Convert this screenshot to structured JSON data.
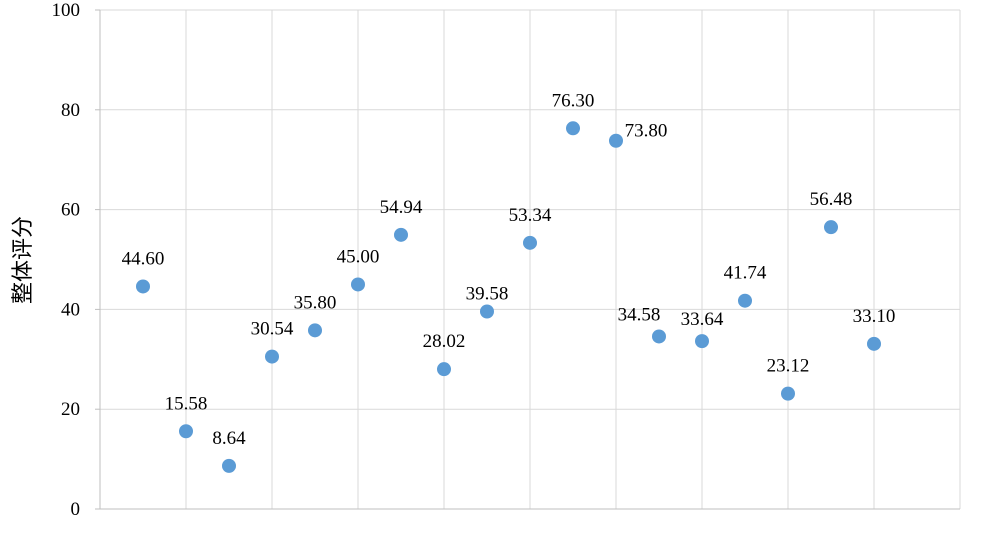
{
  "chart_data": {
    "type": "scatter",
    "title": "",
    "xlabel": "",
    "ylabel": "整体评分",
    "ylim": [
      0,
      100
    ],
    "yticks": [
      0,
      20,
      40,
      60,
      80,
      100
    ],
    "x": [
      1,
      2,
      3,
      4,
      5,
      6,
      7,
      8,
      9,
      10,
      11,
      12,
      13,
      14,
      15,
      16,
      17,
      18
    ],
    "y": [
      44.6,
      15.58,
      8.64,
      30.54,
      35.8,
      45.0,
      54.94,
      28.02,
      39.58,
      53.34,
      76.3,
      73.8,
      34.58,
      33.64,
      41.74,
      23.12,
      56.48,
      33.1
    ],
    "labels": [
      "44.60",
      "15.58",
      "8.64",
      "30.54",
      "35.80",
      "45.00",
      "54.94",
      "28.02",
      "39.58",
      "53.34",
      "76.30",
      "73.80",
      "34.58",
      "33.64",
      "41.74",
      "23.12",
      "56.48",
      "33.10"
    ],
    "grid": true,
    "legend": "none",
    "colors": {
      "point": "#5b9bd5",
      "grid": "#d9d9d9",
      "axis": "#bfbfbf"
    }
  }
}
